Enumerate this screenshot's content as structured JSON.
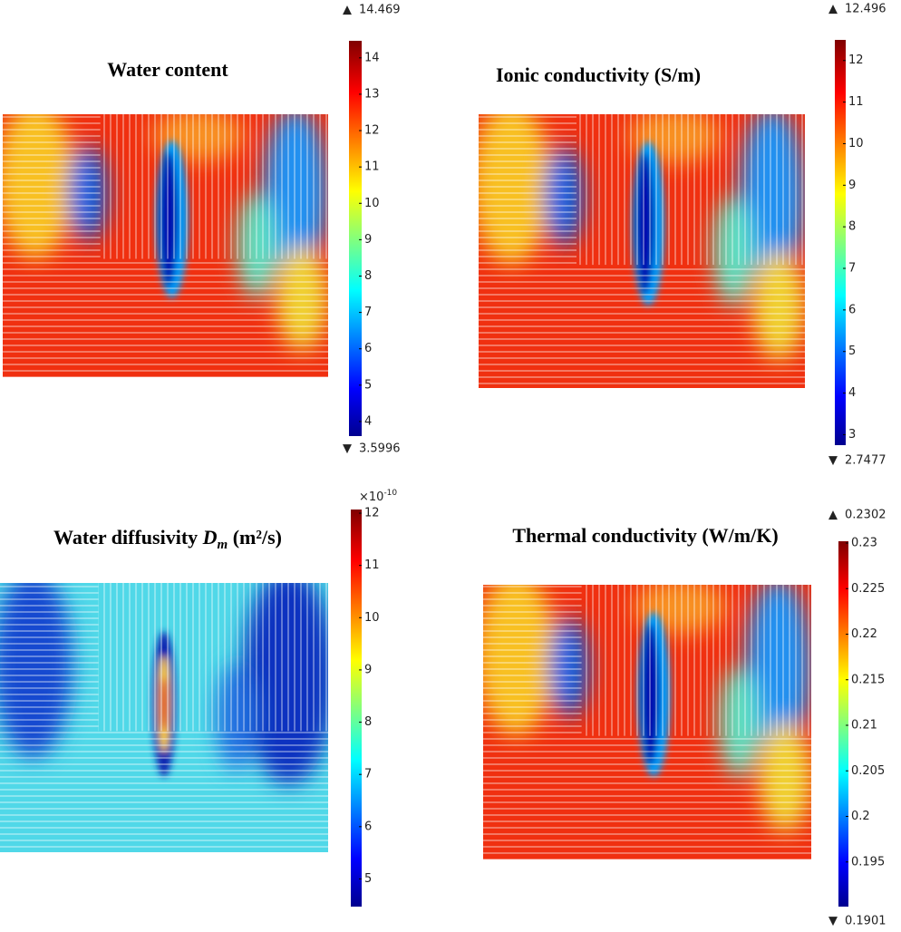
{
  "panels": [
    {
      "title": "Water content",
      "max": 14.469,
      "min": 3.5996,
      "ticks": [
        4,
        5,
        6,
        7,
        8,
        9,
        10,
        11,
        12,
        13,
        14
      ]
    },
    {
      "title": "Ionic conductivity (S/m)",
      "max": 12.496,
      "min": 2.7477,
      "ticks": [
        3,
        4,
        5,
        6,
        7,
        8,
        9,
        10,
        11,
        12
      ]
    },
    {
      "title_parts": [
        "Water diffusivity ",
        "D",
        "m",
        " (m²/s)"
      ],
      "multiplier": "×10",
      "exponent": "-10",
      "range": [
        4.47,
        12.07
      ],
      "ticks": [
        5,
        6,
        7,
        8,
        9,
        10,
        11,
        12
      ]
    },
    {
      "title": "Thermal conductivity (W/m/K)",
      "max": 0.2302,
      "min": 0.1901,
      "ticks": [
        0.195,
        0.2,
        0.205,
        0.21,
        0.215,
        0.22,
        0.225,
        0.23
      ]
    }
  ]
}
